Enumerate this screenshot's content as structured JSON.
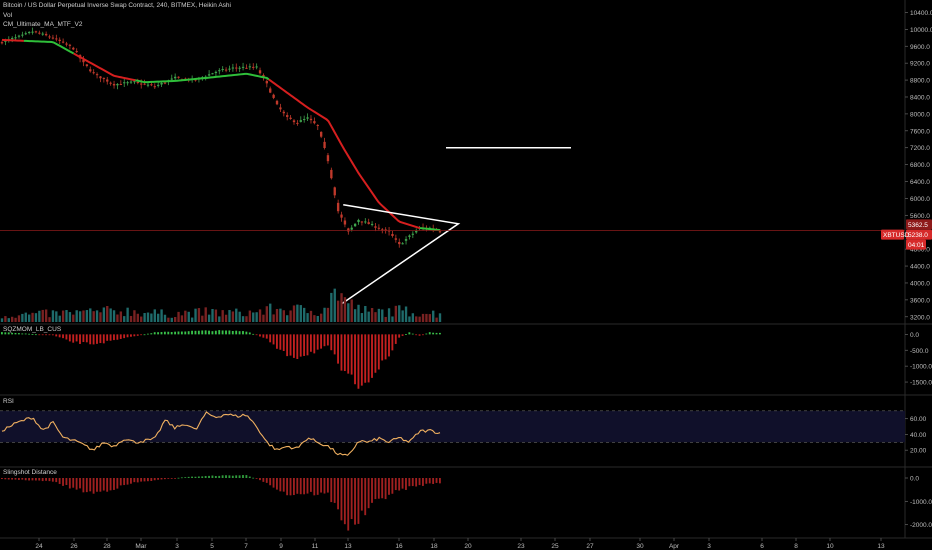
{
  "header": {
    "title": "Bitcoin / US Dollar Perpetual Inverse Swap Contract, 240, BITMEX, Heikin Ashi",
    "vol_label": "Vol",
    "ma_label": "CM_Ultimate_MA_MTF_V2"
  },
  "panes": {
    "sqzmom_label": "SQZMOM_LB_CUS",
    "rsi_label": "RSI",
    "slingshot_label": "Slingshot Distance"
  },
  "price_badges": {
    "upper": "5362.5",
    "symbol": "XBTUSD",
    "current": "5238.0",
    "countdown": "04:01"
  },
  "colors": {
    "up": "#3fa34d",
    "down": "#c0392b",
    "ma_red": "#d61f1f",
    "ma_green": "#2fbf3a",
    "rsi_line": "#f0b060",
    "rsi_band": "#10102a",
    "drawing": "#ffffff"
  },
  "chart_data": [
    {
      "type": "candlestick",
      "title": "Bitcoin / US Dollar Perpetual Inverse Swap Contract, 240, BITMEX, Heikin Ashi",
      "y_ticks": [
        "10400.0",
        "10000.0",
        "9600.0",
        "9200.0",
        "8800.0",
        "8400.0",
        "8000.0",
        "7600.0",
        "7200.0",
        "6800.0",
        "6400.0",
        "6000.0",
        "5600.0",
        "4800.0",
        "4400.0",
        "4000.0",
        "3600.0",
        "3200.0"
      ],
      "ylim": [
        3100,
        10600
      ],
      "x_ticks": [
        "24",
        "26",
        "28",
        "Mar",
        "3",
        "5",
        "7",
        "9",
        "11",
        "13",
        "16",
        "18",
        "20",
        "23",
        "25",
        "27",
        "30",
        "Apr",
        "3",
        "6",
        "8",
        "10",
        "13"
      ],
      "close_keypoints": [
        {
          "x": 0,
          "y": 9700
        },
        {
          "x": 2,
          "y": 9850
        },
        {
          "x": 3,
          "y": 9950
        },
        {
          "x": 5,
          "y": 9800
        },
        {
          "x": 7,
          "y": 9550
        },
        {
          "x": 8,
          "y": 9200
        },
        {
          "x": 9,
          "y": 8950
        },
        {
          "x": 11,
          "y": 8700
        },
        {
          "x": 13,
          "y": 8750
        },
        {
          "x": 15,
          "y": 8650
        },
        {
          "x": 17,
          "y": 8850
        },
        {
          "x": 19,
          "y": 8800
        },
        {
          "x": 21,
          "y": 9000
        },
        {
          "x": 23,
          "y": 9100
        },
        {
          "x": 25,
          "y": 9100
        },
        {
          "x": 26,
          "y": 8700
        },
        {
          "x": 27,
          "y": 8200
        },
        {
          "x": 28,
          "y": 7900
        },
        {
          "x": 29,
          "y": 7800
        },
        {
          "x": 30,
          "y": 7900
        },
        {
          "x": 31,
          "y": 7700
        },
        {
          "x": 32,
          "y": 6900
        },
        {
          "x": 33,
          "y": 5700
        },
        {
          "x": 34,
          "y": 5200
        },
        {
          "x": 35,
          "y": 5500
        },
        {
          "x": 36,
          "y": 5400
        },
        {
          "x": 37,
          "y": 5300
        },
        {
          "x": 38,
          "y": 5200
        },
        {
          "x": 39,
          "y": 4900
        },
        {
          "x": 40,
          "y": 5100
        },
        {
          "x": 41,
          "y": 5300
        },
        {
          "x": 42,
          "y": 5300
        },
        {
          "x": 43,
          "y": 5240
        }
      ],
      "ma_keypoints": [
        {
          "x": 0,
          "y": 9750
        },
        {
          "x": 5,
          "y": 9700
        },
        {
          "x": 8,
          "y": 9300
        },
        {
          "x": 11,
          "y": 8900
        },
        {
          "x": 14,
          "y": 8750
        },
        {
          "x": 17,
          "y": 8780
        },
        {
          "x": 20,
          "y": 8850
        },
        {
          "x": 24,
          "y": 8950
        },
        {
          "x": 26,
          "y": 8850
        },
        {
          "x": 28,
          "y": 8500
        },
        {
          "x": 30,
          "y": 8150
        },
        {
          "x": 32,
          "y": 7850
        },
        {
          "x": 33.5,
          "y": 7200
        },
        {
          "x": 35,
          "y": 6600
        },
        {
          "x": 37,
          "y": 5900
        },
        {
          "x": 39,
          "y": 5450
        },
        {
          "x": 41,
          "y": 5300
        },
        {
          "x": 43,
          "y": 5250
        }
      ],
      "ma_green_ranges": [
        [
          2,
          7
        ],
        [
          13,
          26
        ],
        [
          41,
          43
        ]
      ],
      "volume_scale": [
        0,
        100
      ],
      "volume_keypoints": [
        {
          "x": 0,
          "y": 20
        },
        {
          "x": 4,
          "y": 25
        },
        {
          "x": 8,
          "y": 30
        },
        {
          "x": 12,
          "y": 35
        },
        {
          "x": 16,
          "y": 25
        },
        {
          "x": 20,
          "y": 30
        },
        {
          "x": 24,
          "y": 28
        },
        {
          "x": 27,
          "y": 40
        },
        {
          "x": 31,
          "y": 35
        },
        {
          "x": 32,
          "y": 60
        },
        {
          "x": 33,
          "y": 100
        },
        {
          "x": 34,
          "y": 55
        },
        {
          "x": 36,
          "y": 30
        },
        {
          "x": 39,
          "y": 35
        },
        {
          "x": 43,
          "y": 25
        }
      ],
      "horizontal_line_price": 7200,
      "triangle": {
        "top_left": {
          "x": 33.5,
          "y": 5850
        },
        "apex": {
          "x": 44.8,
          "y": 5400
        },
        "bottom_left": {
          "x": 33.3,
          "y": 3500
        }
      }
    },
    {
      "type": "bar",
      "title": "SQZMOM_LB_CUS",
      "y_ticks": [
        "0.0",
        "-500.0",
        "-1000.0",
        "-1500.0"
      ],
      "ylim": [
        -1750,
        200
      ],
      "keypoints": [
        {
          "x": 0,
          "y": 80
        },
        {
          "x": 2,
          "y": 30
        },
        {
          "x": 5,
          "y": -30
        },
        {
          "x": 7,
          "y": -250
        },
        {
          "x": 9,
          "y": -300
        },
        {
          "x": 11,
          "y": -200
        },
        {
          "x": 13,
          "y": -60
        },
        {
          "x": 15,
          "y": 60
        },
        {
          "x": 18,
          "y": 100
        },
        {
          "x": 21,
          "y": 120
        },
        {
          "x": 24,
          "y": 100
        },
        {
          "x": 26,
          "y": -150
        },
        {
          "x": 27.5,
          "y": -600
        },
        {
          "x": 29,
          "y": -700
        },
        {
          "x": 30.5,
          "y": -550
        },
        {
          "x": 32,
          "y": -400
        },
        {
          "x": 33,
          "y": -900
        },
        {
          "x": 34,
          "y": -1450
        },
        {
          "x": 35,
          "y": -1500
        },
        {
          "x": 36.5,
          "y": -1250
        },
        {
          "x": 38,
          "y": -700
        },
        {
          "x": 39,
          "y": -100
        },
        {
          "x": 40,
          "y": 60
        },
        {
          "x": 41,
          "y": -50
        },
        {
          "x": 42,
          "y": 60
        },
        {
          "x": 43,
          "y": 50
        }
      ]
    },
    {
      "type": "line",
      "title": "RSI",
      "y_ticks": [
        "60.00",
        "40.00",
        "20.00"
      ],
      "ylim": [
        5,
        85
      ],
      "band": [
        30,
        70
      ],
      "keypoints": [
        {
          "x": 0,
          "y": 45
        },
        {
          "x": 1.5,
          "y": 55
        },
        {
          "x": 3,
          "y": 62
        },
        {
          "x": 4,
          "y": 45
        },
        {
          "x": 5,
          "y": 55
        },
        {
          "x": 6,
          "y": 36
        },
        {
          "x": 7.5,
          "y": 30
        },
        {
          "x": 9,
          "y": 20
        },
        {
          "x": 10,
          "y": 30
        },
        {
          "x": 11,
          "y": 25
        },
        {
          "x": 12,
          "y": 35
        },
        {
          "x": 13,
          "y": 30
        },
        {
          "x": 15,
          "y": 34
        },
        {
          "x": 16,
          "y": 58
        },
        {
          "x": 17,
          "y": 48
        },
        {
          "x": 18,
          "y": 54
        },
        {
          "x": 19,
          "y": 45
        },
        {
          "x": 20,
          "y": 67
        },
        {
          "x": 21,
          "y": 62
        },
        {
          "x": 22,
          "y": 66
        },
        {
          "x": 23,
          "y": 63
        },
        {
          "x": 24,
          "y": 65
        },
        {
          "x": 25,
          "y": 50
        },
        {
          "x": 26,
          "y": 30
        },
        {
          "x": 27,
          "y": 20
        },
        {
          "x": 28,
          "y": 25
        },
        {
          "x": 29,
          "y": 22
        },
        {
          "x": 30,
          "y": 36
        },
        {
          "x": 31,
          "y": 30
        },
        {
          "x": 32,
          "y": 25
        },
        {
          "x": 33,
          "y": 15
        },
        {
          "x": 34,
          "y": 12
        },
        {
          "x": 35,
          "y": 32
        },
        {
          "x": 36,
          "y": 30
        },
        {
          "x": 37,
          "y": 35
        },
        {
          "x": 38,
          "y": 30
        },
        {
          "x": 39,
          "y": 36
        },
        {
          "x": 40,
          "y": 30
        },
        {
          "x": 41,
          "y": 44
        },
        {
          "x": 42,
          "y": 45
        },
        {
          "x": 43,
          "y": 42
        }
      ]
    },
    {
      "type": "bar",
      "title": "Slingshot Distance",
      "y_ticks": [
        "0.0",
        "-1000.0",
        "-2000.0"
      ],
      "ylim": [
        -2400,
        300
      ],
      "keypoints": [
        {
          "x": 0,
          "y": -50
        },
        {
          "x": 2,
          "y": -80
        },
        {
          "x": 5,
          "y": -150
        },
        {
          "x": 7,
          "y": -450
        },
        {
          "x": 9,
          "y": -650
        },
        {
          "x": 11,
          "y": -450
        },
        {
          "x": 13,
          "y": -200
        },
        {
          "x": 15,
          "y": -100
        },
        {
          "x": 18,
          "y": 40
        },
        {
          "x": 21,
          "y": 100
        },
        {
          "x": 24,
          "y": 120
        },
        {
          "x": 26,
          "y": -200
        },
        {
          "x": 28,
          "y": -700
        },
        {
          "x": 30,
          "y": -650
        },
        {
          "x": 32,
          "y": -700
        },
        {
          "x": 33,
          "y": -1400
        },
        {
          "x": 34,
          "y": -2100
        },
        {
          "x": 35,
          "y": -1800
        },
        {
          "x": 36.5,
          "y": -1100
        },
        {
          "x": 38,
          "y": -700
        },
        {
          "x": 40,
          "y": -400
        },
        {
          "x": 42,
          "y": -250
        },
        {
          "x": 43,
          "y": -200
        }
      ]
    }
  ]
}
